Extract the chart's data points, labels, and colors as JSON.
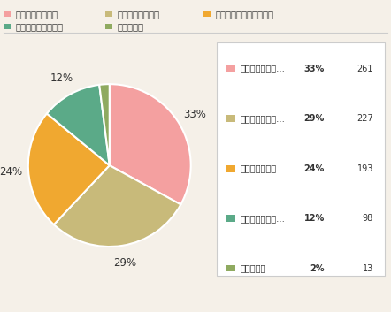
{
  "labels_short": [
    "少し不十分である",
    "あまり十分でない",
    "少ししか用意していない",
    "十分に用意している",
    "わからない"
  ],
  "legend_short": [
    "少し不十分であ…",
    "あまり十分でな…",
    "少ししか用意し…",
    "十分に用意して…",
    "わからない"
  ],
  "values": [
    33,
    29,
    24,
    12,
    2
  ],
  "counts": [
    261,
    227,
    193,
    98,
    13
  ],
  "colors": [
    "#F4A0A0",
    "#C8BA7A",
    "#F0A830",
    "#5BAA88",
    "#8FAA60"
  ],
  "background_color": "#F5F0E8",
  "pct_labels": [
    "33%",
    "29%",
    "24%",
    "12%",
    "2%"
  ],
  "top_row1": [
    "少し不十分である",
    "あまり十分でない",
    "少ししか用意していない"
  ],
  "top_row2": [
    "十分に用意している",
    "わからない"
  ]
}
